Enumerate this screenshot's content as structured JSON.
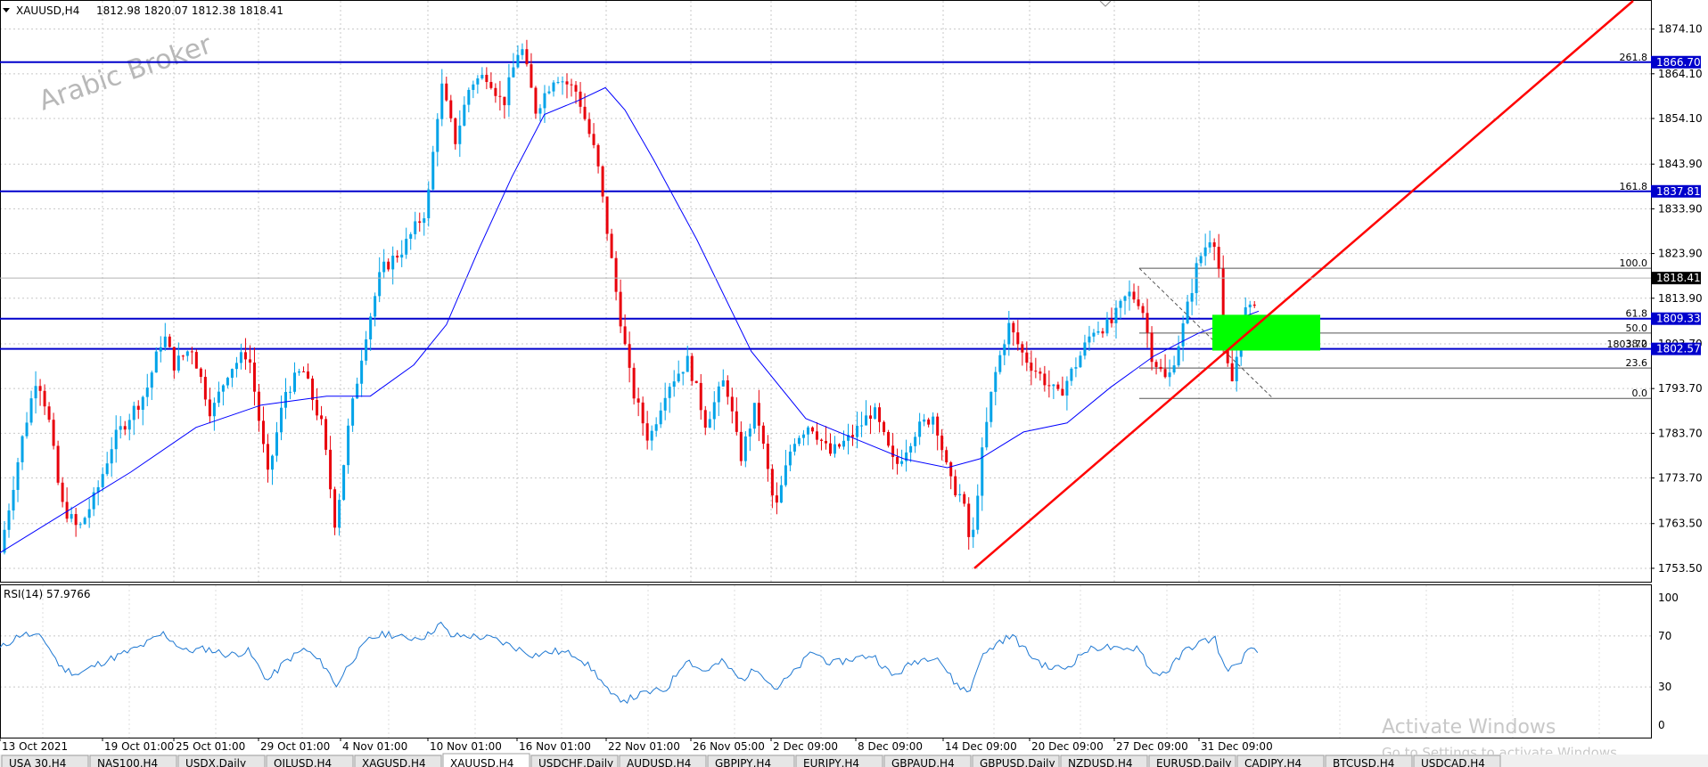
{
  "header": {
    "symbol_label": "XAUUSD,H4",
    "ohlc": "1812.98 1820.07 1812.38 1818.41"
  },
  "watermark": "Arabic Broker",
  "activation": {
    "title": "Activate Windows",
    "subtitle": "Go to Settings to activate Windows."
  },
  "rsi_label": "RSI(14) 57.9766",
  "price_axis": {
    "ticks": [
      "1874.10",
      "1864.10",
      "1854.10",
      "1843.90",
      "1833.90",
      "1823.90",
      "1813.90",
      "1803.70",
      "1793.70",
      "1783.70",
      "1773.70",
      "1763.50",
      "1753.50"
    ],
    "tick_values": [
      1874.1,
      1864.1,
      1854.1,
      1843.9,
      1833.9,
      1823.9,
      1813.9,
      1803.7,
      1793.7,
      1783.7,
      1773.7,
      1763.5,
      1753.5
    ]
  },
  "rsi_axis": {
    "ticks": [
      "100",
      "70",
      "30",
      "0"
    ],
    "tick_values": [
      100,
      70,
      30,
      0
    ]
  },
  "date_labels": [
    "13 Oct 2021",
    "19 Oct 01:00",
    "25 Oct 01:00",
    "29 Oct 01:00",
    "4 Nov 01:00",
    "10 Nov 01:00",
    "16 Nov 01:00",
    "22 Nov 01:00",
    "26 Nov 05:00",
    "2 Dec 09:00",
    "8 Dec 09:00",
    "14 Dec 09:00",
    "20 Dec 09:00",
    "27 Dec 09:00",
    "31 Dec 09:00"
  ],
  "tabs": [
    "USA 30,H4",
    "NAS100,H4",
    "USDX,Daily",
    "OILUSD,H4",
    "XAGUSD,H4",
    "XAUUSD,H4",
    "USDCHF,Daily",
    "AUDUSD,H4",
    "GBPJPY,H4",
    "EURJPY,H4",
    "GBPAUD,H4",
    "GBPUSD,Daily",
    "NZDUSD,H4",
    "EURUSD,Daily",
    "CADJPY,H4",
    "BTCUSD,H4",
    "USDCAD,H4"
  ],
  "active_tab_index": 5,
  "price_tags": {
    "r1": "1866.70",
    "r2": "1837.81",
    "current": "1818.41",
    "s1": "1809.33",
    "s2": "1802.57"
  },
  "colors": {
    "up": "#00a3e8",
    "down": "#e8000b",
    "hline": "#0000cc",
    "trend": "#ff0000",
    "ma": "#0000ff",
    "rsi": "#1e78d2",
    "zone": "#00ff00"
  },
  "chart_data": {
    "type": "candlestick",
    "symbol": "XAUUSD",
    "timeframe": "H4",
    "y_range": [
      1750.5,
      1880.4
    ],
    "rsi_range": [
      0,
      100
    ],
    "horizontal_levels": [
      1866.7,
      1837.81,
      1809.33,
      1802.57
    ],
    "fibonacci": {
      "levels": [
        {
          "label": "261.8",
          "value": 1866.7
        },
        {
          "label": "161.8",
          "value": 1837.81
        },
        {
          "label": "100.0",
          "value": 1820.6
        },
        {
          "label": "61.8",
          "value": 1809.33
        },
        {
          "label": "50.0",
          "value": 1806.1
        },
        {
          "label": "38.2",
          "value": 1802.57
        },
        {
          "label": "23.6",
          "value": 1798.3
        },
        {
          "label": "0.0",
          "value": 1791.5
        }
      ],
      "partial_tick": "1803.70"
    },
    "trendline": {
      "from_date": "14 Dec",
      "from_price": 1753.5,
      "slope_note": "rising support"
    },
    "rsi_last": 57.9766,
    "price_path": [
      [
        0,
        1757
      ],
      [
        20,
        1782
      ],
      [
        34,
        1797
      ],
      [
        44,
        1788
      ],
      [
        56,
        1768
      ],
      [
        72,
        1762
      ],
      [
        88,
        1770
      ],
      [
        104,
        1782
      ],
      [
        120,
        1788
      ],
      [
        134,
        1793
      ],
      [
        150,
        1806
      ],
      [
        160,
        1799
      ],
      [
        176,
        1803
      ],
      [
        194,
        1788
      ],
      [
        210,
        1798
      ],
      [
        228,
        1802
      ],
      [
        246,
        1774
      ],
      [
        262,
        1793
      ],
      [
        278,
        1798
      ],
      [
        296,
        1785
      ],
      [
        308,
        1763
      ],
      [
        320,
        1785
      ],
      [
        335,
        1805
      ],
      [
        350,
        1820
      ],
      [
        370,
        1825
      ],
      [
        392,
        1834
      ],
      [
        405,
        1862
      ],
      [
        418,
        1849
      ],
      [
        432,
        1862
      ],
      [
        448,
        1864
      ],
      [
        462,
        1857
      ],
      [
        478,
        1871
      ],
      [
        492,
        1856
      ],
      [
        510,
        1864
      ],
      [
        530,
        1860
      ],
      [
        548,
        1845
      ],
      [
        560,
        1825
      ],
      [
        566,
        1815
      ],
      [
        580,
        1794
      ],
      [
        596,
        1782
      ],
      [
        612,
        1794
      ],
      [
        632,
        1800
      ],
      [
        648,
        1786
      ],
      [
        666,
        1796
      ],
      [
        680,
        1778
      ],
      [
        694,
        1790
      ],
      [
        712,
        1766
      ],
      [
        728,
        1782
      ],
      [
        744,
        1786
      ],
      [
        762,
        1779
      ],
      [
        782,
        1783
      ],
      [
        802,
        1789
      ],
      [
        822,
        1776
      ],
      [
        840,
        1784
      ],
      [
        858,
        1788
      ],
      [
        872,
        1773
      ],
      [
        884,
        1769
      ],
      [
        892,
        1757
      ],
      [
        900,
        1776
      ],
      [
        912,
        1795
      ],
      [
        926,
        1808
      ],
      [
        940,
        1801
      ],
      [
        954,
        1797
      ],
      [
        972,
        1792
      ],
      [
        990,
        1800
      ],
      [
        1004,
        1807
      ],
      [
        1020,
        1808
      ],
      [
        1036,
        1815
      ],
      [
        1048,
        1813
      ],
      [
        1058,
        1801
      ],
      [
        1072,
        1795
      ],
      [
        1086,
        1807
      ],
      [
        1100,
        1822
      ],
      [
        1112,
        1828
      ],
      [
        1118,
        1826
      ],
      [
        1124,
        1801
      ],
      [
        1132,
        1795
      ],
      [
        1142,
        1811
      ],
      [
        1150,
        1811
      ],
      [
        1156,
        1818.4
      ]
    ],
    "ma_path": [
      [
        0,
        1757
      ],
      [
        60,
        1766
      ],
      [
        120,
        1775
      ],
      [
        180,
        1785
      ],
      [
        240,
        1790
      ],
      [
        300,
        1792
      ],
      [
        340,
        1792
      ],
      [
        380,
        1799
      ],
      [
        410,
        1808
      ],
      [
        440,
        1825
      ],
      [
        470,
        1841
      ],
      [
        500,
        1855
      ],
      [
        530,
        1858
      ],
      [
        556,
        1861
      ],
      [
        574,
        1856
      ],
      [
        600,
        1845
      ],
      [
        640,
        1827
      ],
      [
        690,
        1802
      ],
      [
        740,
        1787
      ],
      [
        790,
        1782
      ],
      [
        830,
        1778
      ],
      [
        870,
        1776
      ],
      [
        900,
        1778
      ],
      [
        940,
        1784
      ],
      [
        980,
        1786
      ],
      [
        1020,
        1794
      ],
      [
        1060,
        1801
      ],
      [
        1100,
        1806
      ],
      [
        1156,
        1811
      ]
    ],
    "rsi_path": [
      [
        0,
        60
      ],
      [
        20,
        72
      ],
      [
        40,
        68
      ],
      [
        56,
        45
      ],
      [
        72,
        40
      ],
      [
        90,
        48
      ],
      [
        110,
        55
      ],
      [
        130,
        62
      ],
      [
        150,
        72
      ],
      [
        170,
        58
      ],
      [
        190,
        60
      ],
      [
        210,
        55
      ],
      [
        228,
        58
      ],
      [
        246,
        35
      ],
      [
        262,
        50
      ],
      [
        280,
        60
      ],
      [
        300,
        45
      ],
      [
        308,
        30
      ],
      [
        322,
        50
      ],
      [
        340,
        68
      ],
      [
        356,
        72
      ],
      [
        372,
        68
      ],
      [
        392,
        70
      ],
      [
        404,
        80
      ],
      [
        414,
        70
      ],
      [
        432,
        70
      ],
      [
        452,
        68
      ],
      [
        470,
        62
      ],
      [
        490,
        55
      ],
      [
        510,
        58
      ],
      [
        530,
        55
      ],
      [
        548,
        40
      ],
      [
        562,
        22
      ],
      [
        576,
        20
      ],
      [
        592,
        25
      ],
      [
        612,
        28
      ],
      [
        630,
        52
      ],
      [
        646,
        42
      ],
      [
        664,
        50
      ],
      [
        680,
        35
      ],
      [
        696,
        45
      ],
      [
        712,
        28
      ],
      [
        730,
        42
      ],
      [
        746,
        58
      ],
      [
        764,
        48
      ],
      [
        782,
        52
      ],
      [
        802,
        55
      ],
      [
        820,
        38
      ],
      [
        840,
        50
      ],
      [
        860,
        55
      ],
      [
        876,
        34
      ],
      [
        890,
        25
      ],
      [
        900,
        52
      ],
      [
        918,
        66
      ],
      [
        930,
        70
      ],
      [
        946,
        55
      ],
      [
        962,
        45
      ],
      [
        980,
        45
      ],
      [
        996,
        58
      ],
      [
        1014,
        62
      ],
      [
        1030,
        58
      ],
      [
        1046,
        62
      ],
      [
        1058,
        40
      ],
      [
        1072,
        42
      ],
      [
        1090,
        60
      ],
      [
        1106,
        66
      ],
      [
        1116,
        68
      ],
      [
        1124,
        45
      ],
      [
        1134,
        45
      ],
      [
        1146,
        58
      ],
      [
        1156,
        57.98
      ]
    ]
  }
}
